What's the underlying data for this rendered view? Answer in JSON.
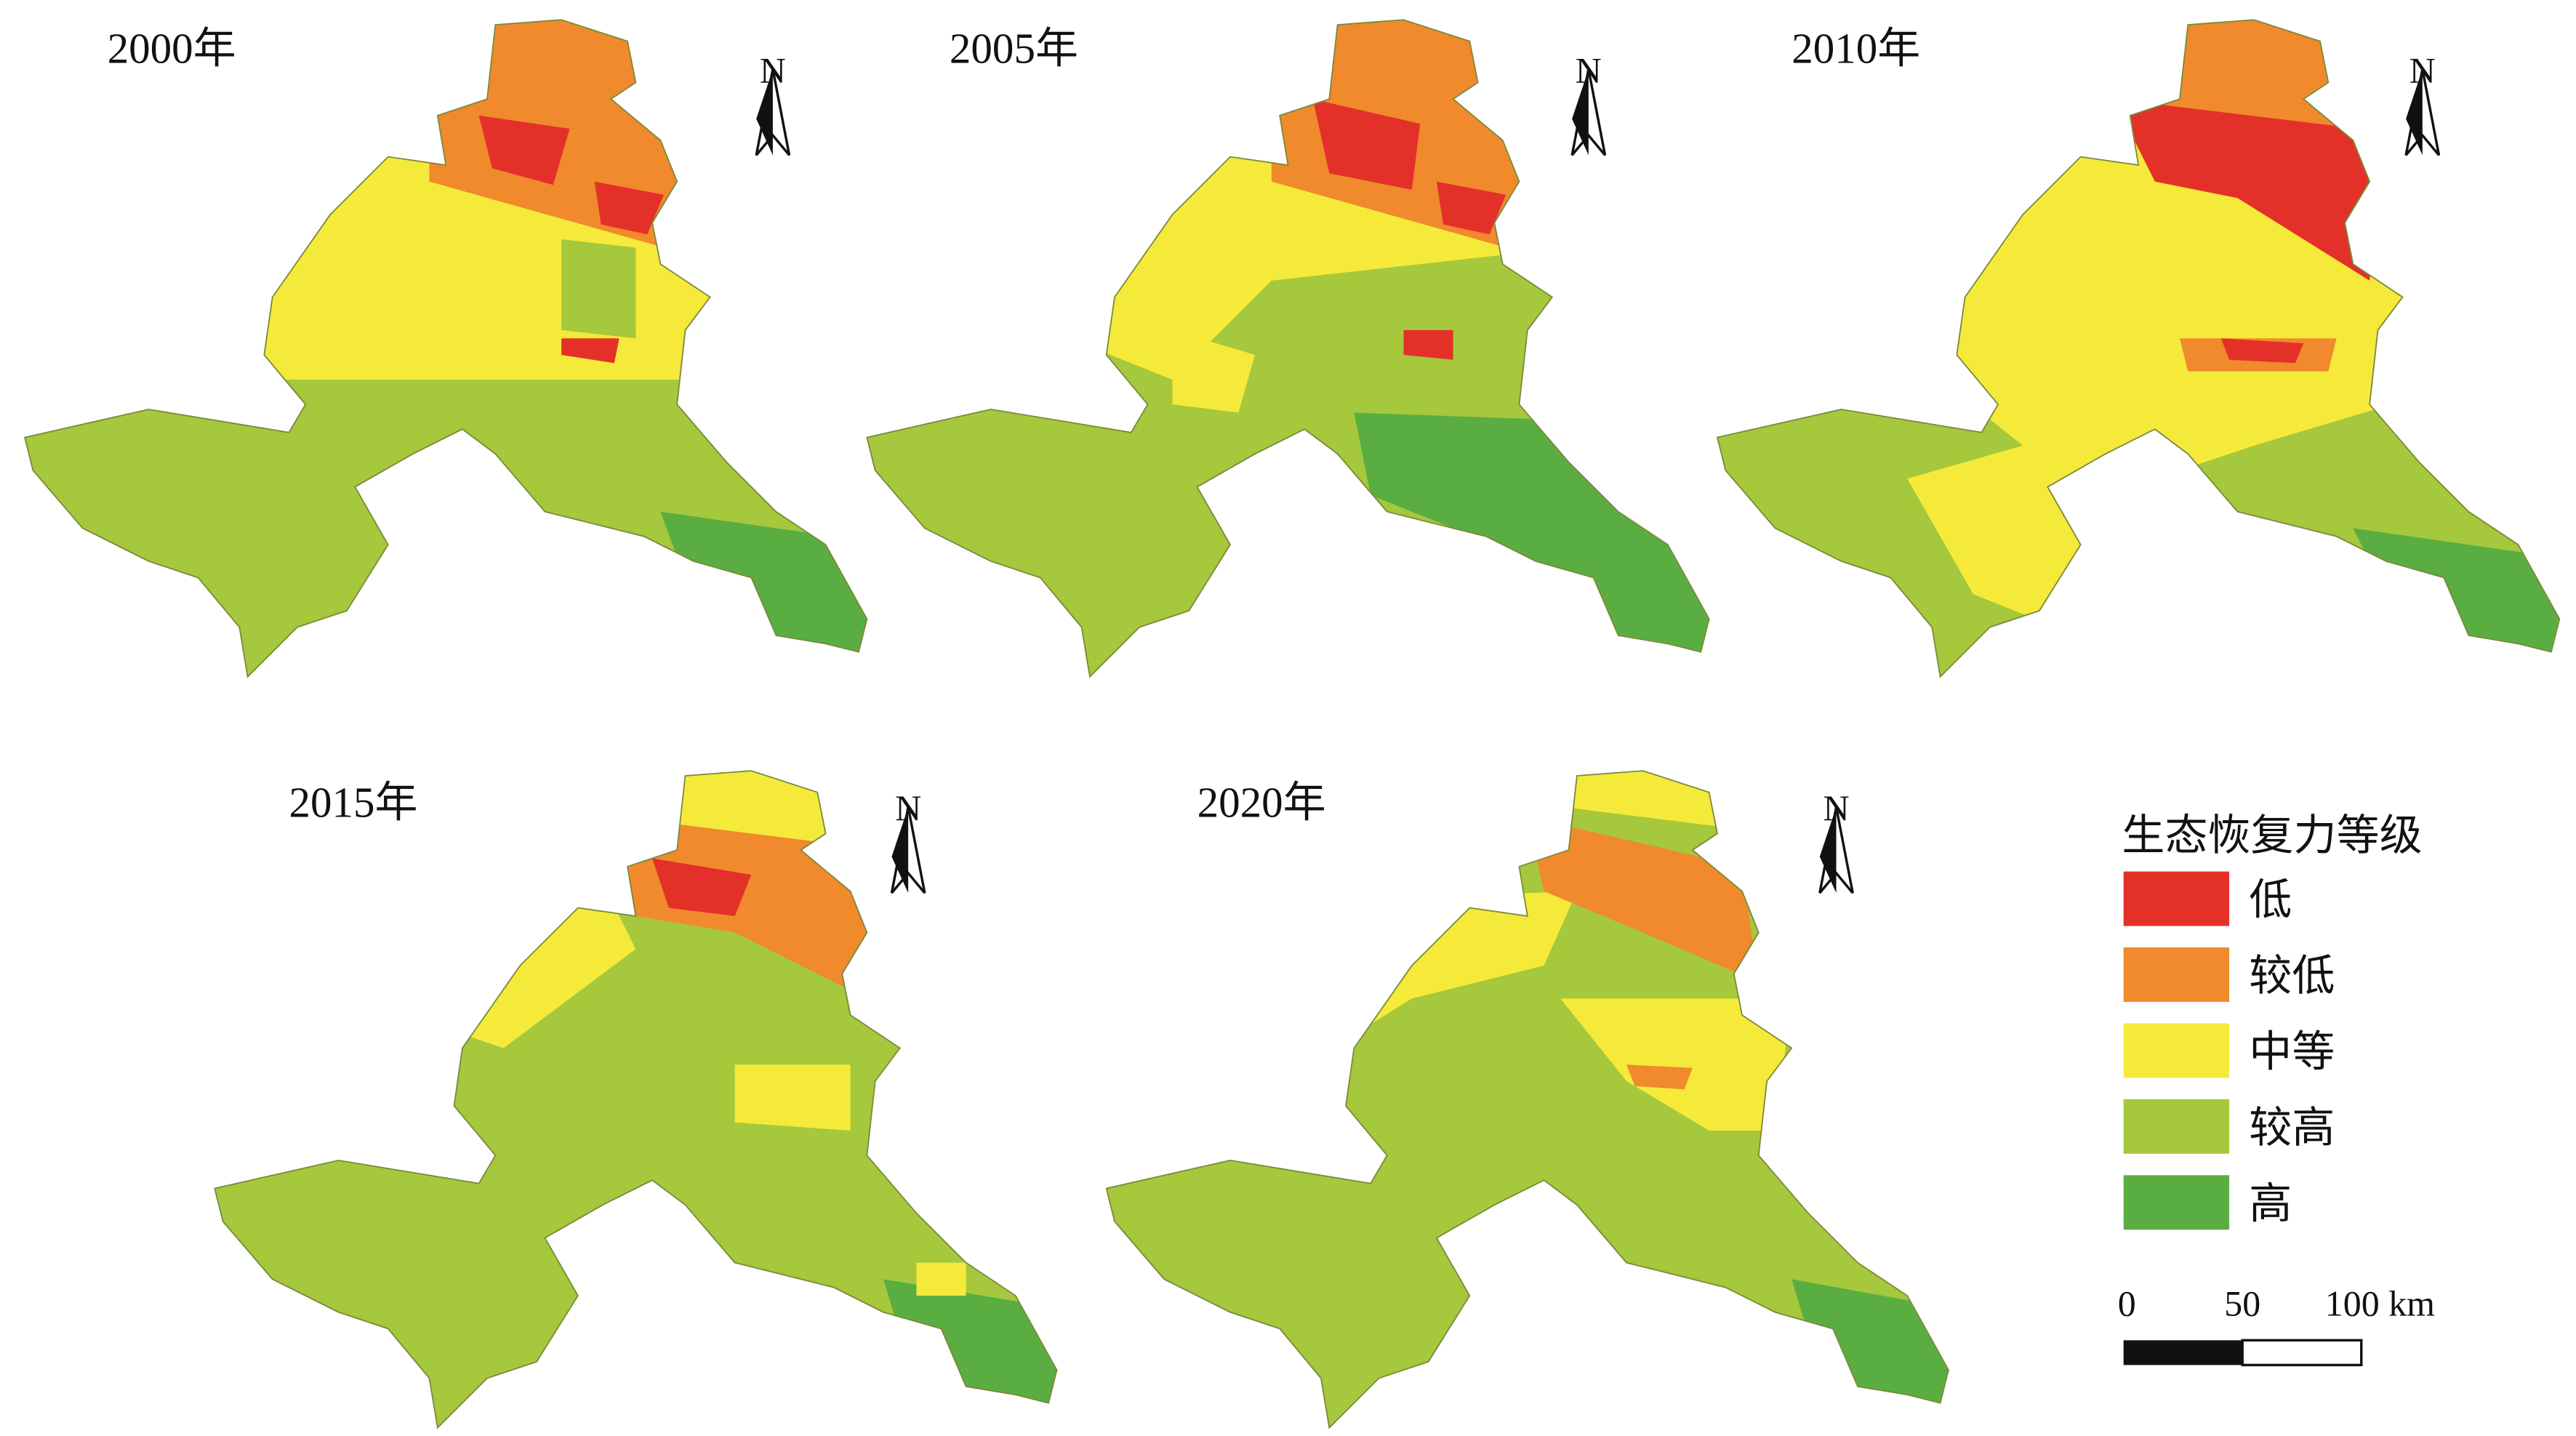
{
  "panels": [
    {
      "year": "2000年",
      "north": "N"
    },
    {
      "year": "2005年",
      "north": "N"
    },
    {
      "year": "2010年",
      "north": "N"
    },
    {
      "year": "2015年",
      "north": "N"
    },
    {
      "year": "2020年",
      "north": "N"
    }
  ],
  "legend": {
    "title": "生态恢复力等级",
    "items": [
      {
        "label": "低",
        "color": "#e3312a"
      },
      {
        "label": "较低",
        "color": "#f08a2c"
      },
      {
        "label": "中等",
        "color": "#f5ea3a"
      },
      {
        "label": "较高",
        "color": "#a5c83c"
      },
      {
        "label": "高",
        "color": "#5aae41"
      }
    ]
  },
  "scale_bar": {
    "labels": [
      "0",
      "50",
      "100 km"
    ]
  }
}
